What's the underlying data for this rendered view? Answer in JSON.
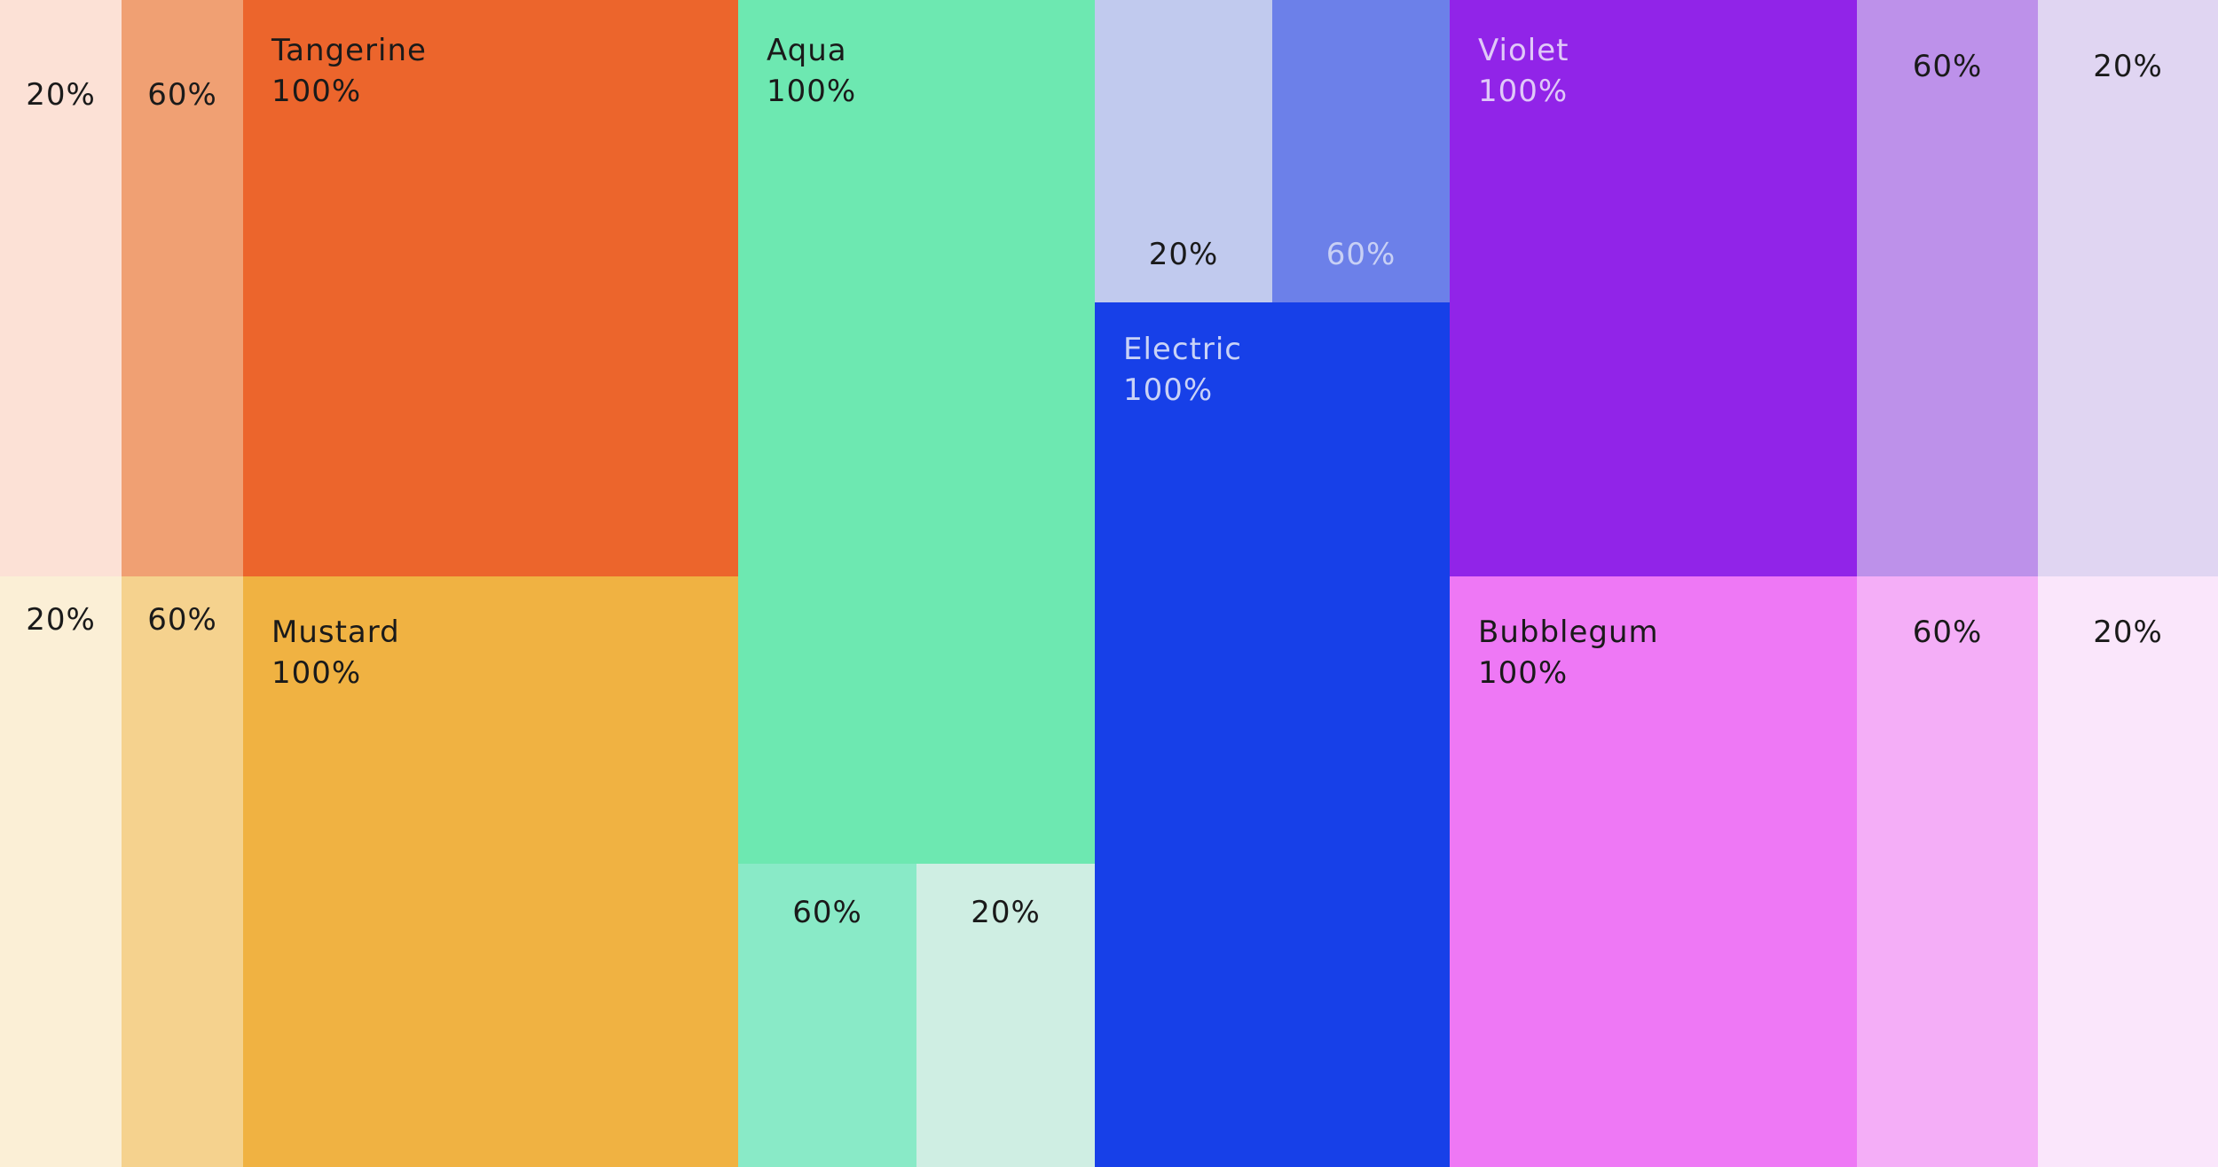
{
  "swatches": [
    {
      "label": "20%",
      "color": "#fce1d6",
      "text_color": "#1a1a1a"
    },
    {
      "label": "60%",
      "color": "#f0a073",
      "text_color": "#1a1a1a"
    },
    {
      "name": "Tangerine",
      "label": "100%",
      "color": "#ec652c",
      "text_color": "#1a1a1a"
    },
    {
      "label": "20%",
      "color": "#fbefd6",
      "text_color": "#1a1a1a"
    },
    {
      "label": "60%",
      "color": "#f5d28e",
      "text_color": "#1a1a1a"
    },
    {
      "name": "Mustard",
      "label": "100%",
      "color": "#f0b242",
      "text_color": "#1a1a1a"
    },
    {
      "name": "Aqua",
      "label": "100%",
      "color": "#6de8b1",
      "text_color": "#1a1a1a"
    },
    {
      "label": "60%",
      "color": "#89eac7",
      "text_color": "#1a1a1a"
    },
    {
      "label": "20%",
      "color": "#cfeee3",
      "text_color": "#1a1a1a"
    },
    {
      "label": "20%",
      "color": "#c1caee",
      "text_color": "#1a1a1a"
    },
    {
      "label": "60%",
      "color": "#6c80e9",
      "text_color": "#c8d0f5"
    },
    {
      "name": "Electric",
      "label": "100%",
      "color": "#1740e8",
      "text_color": "#c9d2f7"
    },
    {
      "name": "Violet",
      "label": "100%",
      "color": "#9124e8",
      "text_color": "#e0c8f8"
    },
    {
      "label": "60%",
      "color": "#bd91ea",
      "text_color": "#1a1a1a"
    },
    {
      "label": "20%",
      "color": "#e0d5f2",
      "text_color": "#1a1a1a"
    },
    {
      "name": "Bubblegum",
      "label": "100%",
      "color": "#ee78f5",
      "text_color": "#1a1a1a"
    },
    {
      "label": "60%",
      "color": "#f4aef7",
      "text_color": "#1a1a1a"
    },
    {
      "label": "20%",
      "color": "#fae6fb",
      "text_color": "#1a1a1a"
    }
  ]
}
